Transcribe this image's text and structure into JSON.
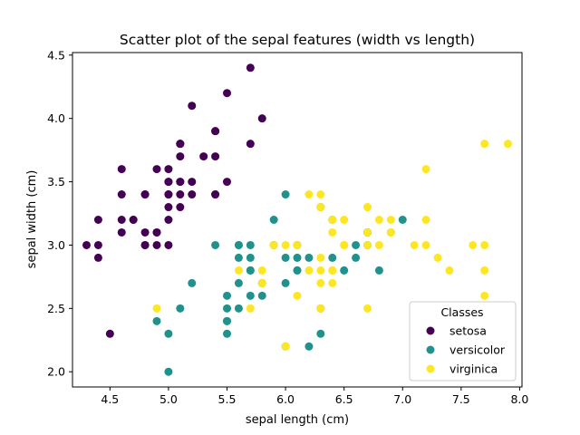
{
  "chart_data": {
    "type": "scatter",
    "title": "Scatter plot of the sepal features (width vs length)",
    "xlabel": "sepal length (cm)",
    "ylabel": "sepal width (cm)",
    "xlim": [
      4.18,
      8.02
    ],
    "ylim": [
      1.88,
      4.52
    ],
    "xticks": [
      "4.5",
      "5.0",
      "5.5",
      "6.0",
      "6.5",
      "7.0",
      "7.5",
      "8.0"
    ],
    "xtick_values": [
      4.5,
      5.0,
      5.5,
      6.0,
      6.5,
      7.0,
      7.5,
      8.0
    ],
    "yticks": [
      "2.0",
      "2.5",
      "3.0",
      "3.5",
      "4.0",
      "4.5"
    ],
    "ytick_values": [
      2.0,
      2.5,
      3.0,
      3.5,
      4.0,
      4.5
    ],
    "grid": false,
    "legend": {
      "title": "Classes",
      "placement": "lower-right"
    },
    "series": [
      {
        "name": "setosa",
        "color": "#440154",
        "points": [
          [
            5.1,
            3.5
          ],
          [
            4.9,
            3.0
          ],
          [
            4.7,
            3.2
          ],
          [
            4.6,
            3.1
          ],
          [
            5.0,
            3.6
          ],
          [
            5.4,
            3.9
          ],
          [
            4.6,
            3.4
          ],
          [
            5.0,
            3.4
          ],
          [
            4.4,
            2.9
          ],
          [
            4.9,
            3.1
          ],
          [
            5.4,
            3.7
          ],
          [
            4.8,
            3.4
          ],
          [
            4.8,
            3.0
          ],
          [
            4.3,
            3.0
          ],
          [
            5.8,
            4.0
          ],
          [
            5.7,
            4.4
          ],
          [
            5.4,
            3.9
          ],
          [
            5.1,
            3.5
          ],
          [
            5.7,
            3.8
          ],
          [
            5.1,
            3.8
          ],
          [
            5.4,
            3.4
          ],
          [
            5.1,
            3.7
          ],
          [
            4.6,
            3.6
          ],
          [
            5.1,
            3.3
          ],
          [
            4.8,
            3.4
          ],
          [
            5.0,
            3.0
          ],
          [
            5.0,
            3.4
          ],
          [
            5.2,
            3.5
          ],
          [
            5.2,
            3.4
          ],
          [
            4.7,
            3.2
          ],
          [
            4.8,
            3.1
          ],
          [
            5.4,
            3.4
          ],
          [
            5.2,
            4.1
          ],
          [
            5.5,
            4.2
          ],
          [
            4.9,
            3.1
          ],
          [
            5.0,
            3.2
          ],
          [
            5.5,
            3.5
          ],
          [
            4.9,
            3.6
          ],
          [
            4.4,
            3.0
          ],
          [
            5.1,
            3.4
          ],
          [
            5.0,
            3.5
          ],
          [
            4.5,
            2.3
          ],
          [
            4.4,
            3.2
          ],
          [
            5.0,
            3.5
          ],
          [
            5.1,
            3.8
          ],
          [
            4.8,
            3.0
          ],
          [
            5.1,
            3.8
          ],
          [
            4.6,
            3.2
          ],
          [
            5.3,
            3.7
          ],
          [
            5.0,
            3.3
          ]
        ]
      },
      {
        "name": "versicolor",
        "color": "#21918c",
        "points": [
          [
            7.0,
            3.2
          ],
          [
            6.4,
            3.2
          ],
          [
            6.9,
            3.1
          ],
          [
            5.5,
            2.3
          ],
          [
            6.5,
            2.8
          ],
          [
            5.7,
            2.8
          ],
          [
            6.3,
            3.3
          ],
          [
            4.9,
            2.4
          ],
          [
            6.6,
            2.9
          ],
          [
            5.2,
            2.7
          ],
          [
            5.0,
            2.0
          ],
          [
            5.9,
            3.0
          ],
          [
            6.0,
            2.2
          ],
          [
            6.1,
            2.9
          ],
          [
            5.6,
            2.9
          ],
          [
            6.7,
            3.1
          ],
          [
            5.6,
            3.0
          ],
          [
            5.8,
            2.7
          ],
          [
            6.2,
            2.2
          ],
          [
            5.6,
            2.5
          ],
          [
            5.9,
            3.2
          ],
          [
            6.1,
            2.8
          ],
          [
            6.3,
            2.5
          ],
          [
            6.1,
            2.8
          ],
          [
            6.4,
            2.9
          ],
          [
            6.6,
            3.0
          ],
          [
            6.8,
            2.8
          ],
          [
            6.7,
            3.0
          ],
          [
            6.0,
            2.9
          ],
          [
            5.7,
            2.6
          ],
          [
            5.5,
            2.4
          ],
          [
            5.5,
            2.4
          ],
          [
            5.8,
            2.7
          ],
          [
            6.0,
            2.7
          ],
          [
            5.4,
            3.0
          ],
          [
            6.0,
            3.4
          ],
          [
            6.7,
            3.1
          ],
          [
            6.3,
            2.3
          ],
          [
            5.6,
            3.0
          ],
          [
            5.5,
            2.5
          ],
          [
            5.5,
            2.6
          ],
          [
            6.1,
            3.0
          ],
          [
            5.8,
            2.6
          ],
          [
            5.0,
            2.3
          ],
          [
            5.6,
            2.7
          ],
          [
            5.7,
            3.0
          ],
          [
            5.7,
            2.9
          ],
          [
            6.2,
            2.9
          ],
          [
            5.1,
            2.5
          ],
          [
            5.7,
            2.8
          ]
        ]
      },
      {
        "name": "virginica",
        "color": "#fde725",
        "points": [
          [
            6.3,
            3.3
          ],
          [
            5.8,
            2.7
          ],
          [
            7.1,
            3.0
          ],
          [
            6.3,
            2.9
          ],
          [
            6.5,
            3.0
          ],
          [
            7.6,
            3.0
          ],
          [
            4.9,
            2.5
          ],
          [
            7.3,
            2.9
          ],
          [
            6.7,
            2.5
          ],
          [
            7.2,
            3.6
          ],
          [
            6.5,
            3.2
          ],
          [
            6.4,
            2.7
          ],
          [
            6.8,
            3.0
          ],
          [
            5.7,
            2.5
          ],
          [
            5.8,
            2.8
          ],
          [
            6.4,
            3.2
          ],
          [
            6.5,
            3.0
          ],
          [
            7.7,
            3.8
          ],
          [
            7.7,
            2.6
          ],
          [
            6.0,
            2.2
          ],
          [
            6.9,
            3.2
          ],
          [
            5.6,
            2.8
          ],
          [
            7.7,
            2.8
          ],
          [
            6.3,
            2.7
          ],
          [
            6.7,
            3.3
          ],
          [
            7.2,
            3.2
          ],
          [
            6.2,
            2.8
          ],
          [
            6.1,
            3.0
          ],
          [
            6.4,
            2.8
          ],
          [
            7.2,
            3.0
          ],
          [
            7.4,
            2.8
          ],
          [
            7.9,
            3.8
          ],
          [
            6.4,
            2.8
          ],
          [
            6.3,
            2.8
          ],
          [
            6.1,
            2.6
          ],
          [
            7.7,
            3.0
          ],
          [
            6.3,
            3.4
          ],
          [
            6.4,
            3.1
          ],
          [
            6.0,
            3.0
          ],
          [
            6.9,
            3.1
          ],
          [
            6.7,
            3.1
          ],
          [
            6.9,
            3.1
          ],
          [
            5.8,
            2.7
          ],
          [
            6.8,
            3.2
          ],
          [
            6.7,
            3.3
          ],
          [
            6.7,
            3.0
          ],
          [
            6.3,
            2.5
          ],
          [
            6.5,
            3.0
          ],
          [
            6.2,
            3.4
          ],
          [
            5.9,
            3.0
          ]
        ]
      }
    ]
  }
}
